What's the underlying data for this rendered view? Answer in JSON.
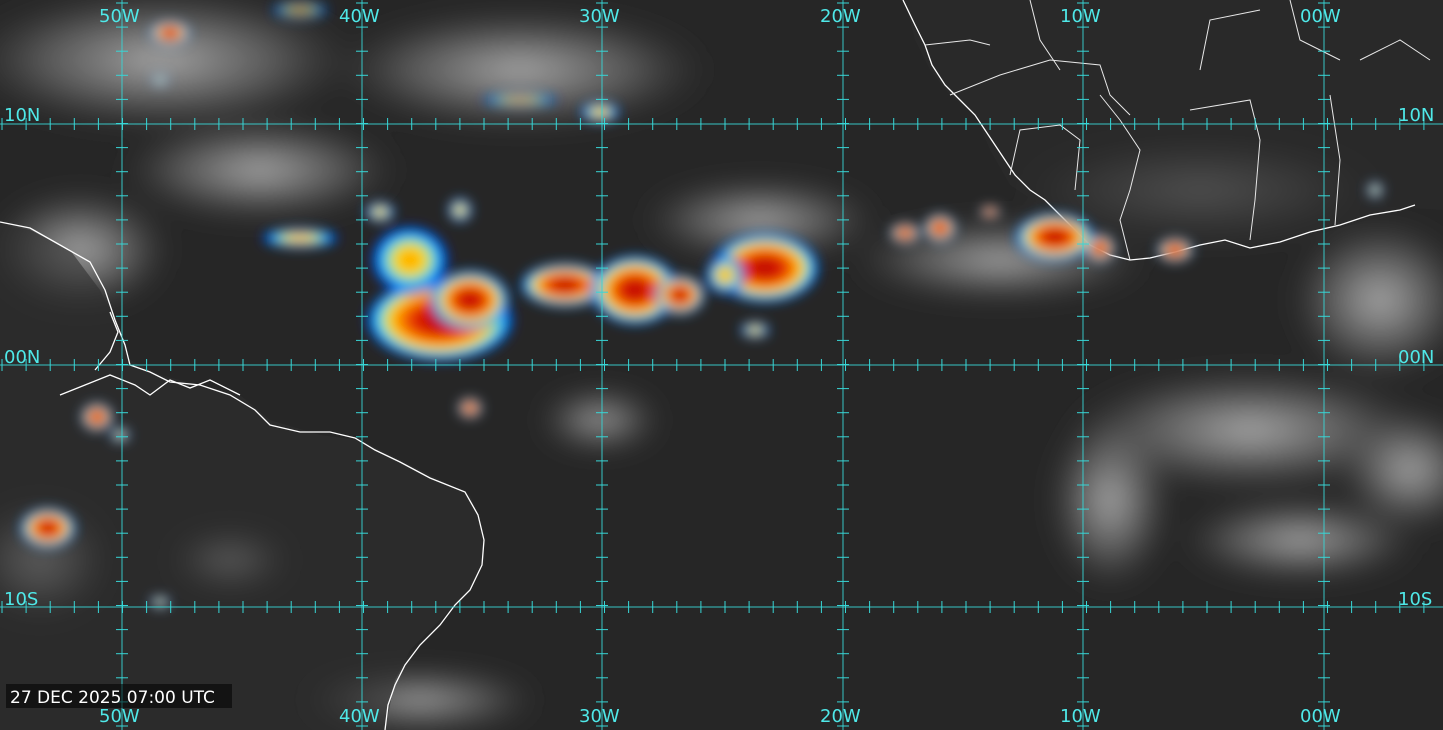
{
  "timestamp": "27 DEC 2025 07:00 UTC",
  "longitude_labels": [
    "50W",
    "40W",
    "30W",
    "20W",
    "10W",
    "00W"
  ],
  "latitude_labels": [
    "10N",
    "00N",
    "10S"
  ],
  "colors": {
    "grid": "#38d6d6",
    "label": "#4fe8e8",
    "coastline": "#ffffff",
    "background": "#2a2a2a"
  }
}
